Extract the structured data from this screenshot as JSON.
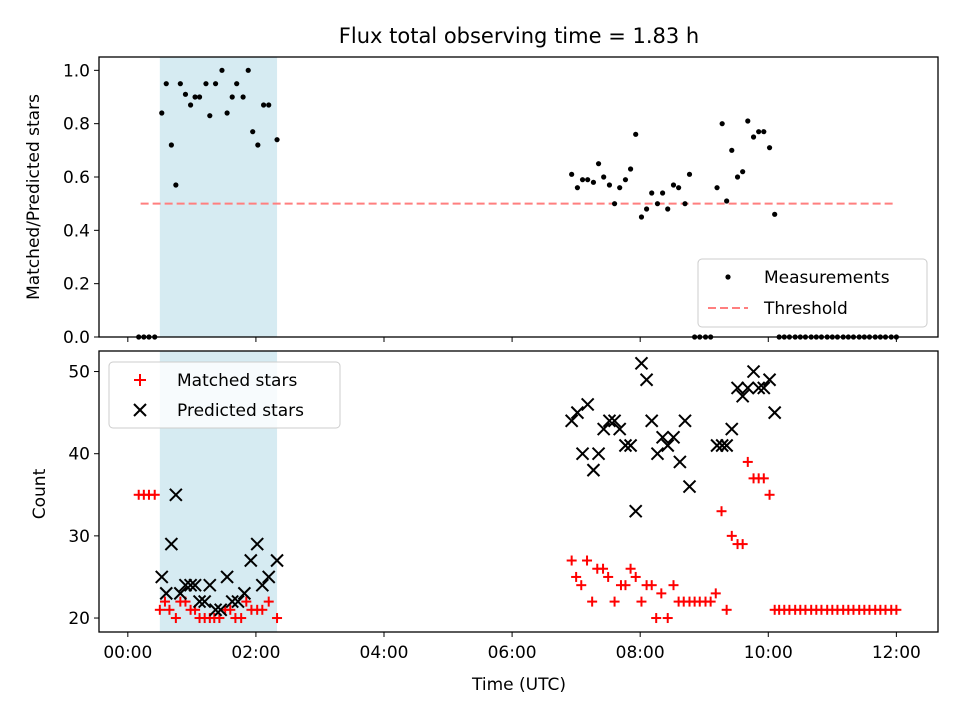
{
  "chart_data": [
    {
      "type": "scatter",
      "title": "Flux total observing time = 1.83 h",
      "xlabel": "",
      "ylabel": "Matched/Predicted stars",
      "ylim": [
        0.0,
        1.05
      ],
      "xlim": [
        -0.45,
        12.65
      ],
      "x_unit": "hours (UTC)",
      "yticks": [
        "0.0",
        "0.2",
        "0.4",
        "0.6",
        "0.8",
        "1.0"
      ],
      "xticks_shown": false,
      "highlight_span": {
        "x_start": 0.5,
        "x_end": 2.33,
        "color": "#add8e6"
      },
      "threshold": {
        "name": "Threshold",
        "y": 0.5,
        "x_start": 0.2,
        "x_end": 12.0,
        "color": "#ff7f7f",
        "style": "dashed"
      },
      "series": [
        {
          "name": "Measurements",
          "marker": "dot",
          "color": "#000000",
          "points": [
            [
              0.17,
              0.0
            ],
            [
              0.25,
              0.0
            ],
            [
              0.33,
              0.0
            ],
            [
              0.42,
              0.0
            ],
            [
              0.53,
              0.84
            ],
            [
              0.6,
              0.95
            ],
            [
              0.68,
              0.72
            ],
            [
              0.75,
              0.57
            ],
            [
              0.82,
              0.95
            ],
            [
              0.9,
              0.91
            ],
            [
              0.98,
              0.87
            ],
            [
              1.05,
              0.9
            ],
            [
              1.12,
              0.9
            ],
            [
              1.22,
              0.95
            ],
            [
              1.28,
              0.83
            ],
            [
              1.37,
              0.95
            ],
            [
              1.47,
              1.0
            ],
            [
              1.55,
              0.84
            ],
            [
              1.63,
              0.9
            ],
            [
              1.7,
              0.95
            ],
            [
              1.8,
              0.9
            ],
            [
              1.88,
              1.0
            ],
            [
              1.95,
              0.77
            ],
            [
              2.03,
              0.72
            ],
            [
              2.12,
              0.87
            ],
            [
              2.2,
              0.87
            ],
            [
              2.33,
              0.74
            ],
            [
              6.93,
              0.61
            ],
            [
              7.02,
              0.56
            ],
            [
              7.1,
              0.59
            ],
            [
              7.18,
              0.59
            ],
            [
              7.27,
              0.58
            ],
            [
              7.35,
              0.65
            ],
            [
              7.43,
              0.6
            ],
            [
              7.52,
              0.57
            ],
            [
              7.6,
              0.5
            ],
            [
              7.68,
              0.56
            ],
            [
              7.77,
              0.59
            ],
            [
              7.85,
              0.63
            ],
            [
              7.93,
              0.76
            ],
            [
              8.02,
              0.45
            ],
            [
              8.1,
              0.48
            ],
            [
              8.18,
              0.54
            ],
            [
              8.27,
              0.5
            ],
            [
              8.35,
              0.54
            ],
            [
              8.43,
              0.48
            ],
            [
              8.52,
              0.57
            ],
            [
              8.6,
              0.56
            ],
            [
              8.7,
              0.5
            ],
            [
              8.77,
              0.61
            ],
            [
              8.85,
              0.0
            ],
            [
              8.93,
              0.0
            ],
            [
              9.02,
              0.0
            ],
            [
              9.1,
              0.0
            ],
            [
              9.2,
              0.56
            ],
            [
              9.28,
              0.8
            ],
            [
              9.35,
              0.51
            ],
            [
              9.43,
              0.7
            ],
            [
              9.52,
              0.6
            ],
            [
              9.6,
              0.62
            ],
            [
              9.68,
              0.81
            ],
            [
              9.77,
              0.75
            ],
            [
              9.85,
              0.77
            ],
            [
              9.93,
              0.77
            ],
            [
              10.02,
              0.71
            ],
            [
              10.1,
              0.46
            ],
            [
              10.17,
              0.0
            ],
            [
              10.25,
              0.0
            ],
            [
              10.33,
              0.0
            ],
            [
              10.42,
              0.0
            ],
            [
              10.5,
              0.0
            ],
            [
              10.58,
              0.0
            ],
            [
              10.67,
              0.0
            ],
            [
              10.75,
              0.0
            ],
            [
              10.83,
              0.0
            ],
            [
              10.92,
              0.0
            ],
            [
              11.0,
              0.0
            ],
            [
              11.08,
              0.0
            ],
            [
              11.17,
              0.0
            ],
            [
              11.25,
              0.0
            ],
            [
              11.33,
              0.0
            ],
            [
              11.42,
              0.0
            ],
            [
              11.5,
              0.0
            ],
            [
              11.58,
              0.0
            ],
            [
              11.67,
              0.0
            ],
            [
              11.75,
              0.0
            ],
            [
              11.83,
              0.0
            ],
            [
              11.92,
              0.0
            ],
            [
              12.0,
              0.0
            ]
          ]
        }
      ],
      "legend": {
        "placement": "lower right",
        "entries": [
          "Measurements",
          "Threshold"
        ]
      }
    },
    {
      "type": "scatter",
      "title": "",
      "xlabel": "Time (UTC)",
      "ylabel": "Count",
      "ylim": [
        18.3,
        52.5
      ],
      "xlim": [
        -0.45,
        12.65
      ],
      "x_unit": "hours (UTC)",
      "xticks": [
        "00:00",
        "02:00",
        "04:00",
        "06:00",
        "08:00",
        "10:00",
        "12:00"
      ],
      "yticks": [
        "20",
        "30",
        "40",
        "50"
      ],
      "highlight_span": {
        "x_start": 0.5,
        "x_end": 2.33,
        "color": "#add8e6"
      },
      "series": [
        {
          "name": "Matched stars",
          "marker": "plus",
          "color": "#ff0000",
          "points": [
            [
              0.17,
              35
            ],
            [
              0.25,
              35
            ],
            [
              0.33,
              35
            ],
            [
              0.42,
              35
            ],
            [
              0.5,
              21
            ],
            [
              0.58,
              22
            ],
            [
              0.65,
              21
            ],
            [
              0.75,
              20
            ],
            [
              0.82,
              22
            ],
            [
              0.9,
              22
            ],
            [
              0.98,
              21
            ],
            [
              1.05,
              21
            ],
            [
              1.12,
              20
            ],
            [
              1.2,
              20
            ],
            [
              1.28,
              20
            ],
            [
              1.35,
              20
            ],
            [
              1.43,
              20
            ],
            [
              1.52,
              21
            ],
            [
              1.6,
              21
            ],
            [
              1.68,
              20
            ],
            [
              1.77,
              20
            ],
            [
              1.85,
              22
            ],
            [
              1.93,
              21
            ],
            [
              2.02,
              21
            ],
            [
              2.1,
              21
            ],
            [
              2.2,
              22
            ],
            [
              2.33,
              20
            ],
            [
              6.93,
              27
            ],
            [
              7.0,
              25
            ],
            [
              7.08,
              24
            ],
            [
              7.17,
              27
            ],
            [
              7.25,
              22
            ],
            [
              7.33,
              26
            ],
            [
              7.42,
              26
            ],
            [
              7.5,
              25
            ],
            [
              7.6,
              22
            ],
            [
              7.7,
              24
            ],
            [
              7.77,
              24
            ],
            [
              7.85,
              26
            ],
            [
              7.93,
              25
            ],
            [
              8.02,
              22
            ],
            [
              8.1,
              24
            ],
            [
              8.18,
              24
            ],
            [
              8.25,
              20
            ],
            [
              8.33,
              23
            ],
            [
              8.43,
              20
            ],
            [
              8.52,
              24
            ],
            [
              8.6,
              22
            ],
            [
              8.68,
              22
            ],
            [
              8.77,
              22
            ],
            [
              8.85,
              22
            ],
            [
              8.93,
              22
            ],
            [
              9.02,
              22
            ],
            [
              9.1,
              22
            ],
            [
              9.18,
              23
            ],
            [
              9.27,
              33
            ],
            [
              9.35,
              21
            ],
            [
              9.43,
              30
            ],
            [
              9.52,
              29
            ],
            [
              9.6,
              29
            ],
            [
              9.68,
              39
            ],
            [
              9.77,
              37
            ],
            [
              9.85,
              37
            ],
            [
              9.93,
              37
            ],
            [
              10.02,
              35
            ],
            [
              10.1,
              21
            ],
            [
              10.17,
              21
            ],
            [
              10.25,
              21
            ],
            [
              10.33,
              21
            ],
            [
              10.42,
              21
            ],
            [
              10.5,
              21
            ],
            [
              10.58,
              21
            ],
            [
              10.67,
              21
            ],
            [
              10.75,
              21
            ],
            [
              10.83,
              21
            ],
            [
              10.92,
              21
            ],
            [
              11.0,
              21
            ],
            [
              11.08,
              21
            ],
            [
              11.17,
              21
            ],
            [
              11.25,
              21
            ],
            [
              11.33,
              21
            ],
            [
              11.42,
              21
            ],
            [
              11.5,
              21
            ],
            [
              11.58,
              21
            ],
            [
              11.67,
              21
            ],
            [
              11.75,
              21
            ],
            [
              11.83,
              21
            ],
            [
              11.92,
              21
            ],
            [
              12.0,
              21
            ]
          ]
        },
        {
          "name": "Predicted stars",
          "marker": "x",
          "color": "#000000",
          "points": [
            [
              0.53,
              25
            ],
            [
              0.6,
              23
            ],
            [
              0.68,
              29
            ],
            [
              0.75,
              35
            ],
            [
              0.82,
              23
            ],
            [
              0.9,
              24
            ],
            [
              0.98,
              24
            ],
            [
              1.05,
              24
            ],
            [
              1.12,
              22
            ],
            [
              1.2,
              22
            ],
            [
              1.28,
              24
            ],
            [
              1.37,
              21
            ],
            [
              1.45,
              21
            ],
            [
              1.55,
              25
            ],
            [
              1.63,
              22
            ],
            [
              1.72,
              22
            ],
            [
              1.82,
              23
            ],
            [
              1.92,
              27
            ],
            [
              2.02,
              29
            ],
            [
              2.1,
              24
            ],
            [
              2.2,
              25
            ],
            [
              2.33,
              27
            ],
            [
              6.93,
              44
            ],
            [
              7.02,
              45
            ],
            [
              7.1,
              40
            ],
            [
              7.18,
              46
            ],
            [
              7.27,
              38
            ],
            [
              7.35,
              40
            ],
            [
              7.43,
              43
            ],
            [
              7.52,
              44
            ],
            [
              7.6,
              44
            ],
            [
              7.68,
              43
            ],
            [
              7.77,
              41
            ],
            [
              7.85,
              41
            ],
            [
              7.93,
              33
            ],
            [
              8.02,
              51
            ],
            [
              8.1,
              49
            ],
            [
              8.18,
              44
            ],
            [
              8.27,
              40
            ],
            [
              8.35,
              42
            ],
            [
              8.43,
              41
            ],
            [
              8.52,
              42
            ],
            [
              8.62,
              39
            ],
            [
              8.7,
              44
            ],
            [
              8.77,
              36
            ],
            [
              9.2,
              41
            ],
            [
              9.28,
              41
            ],
            [
              9.35,
              41
            ],
            [
              9.43,
              43
            ],
            [
              9.52,
              48
            ],
            [
              9.6,
              47
            ],
            [
              9.68,
              48
            ],
            [
              9.77,
              50
            ],
            [
              9.85,
              48
            ],
            [
              9.93,
              48
            ],
            [
              10.02,
              49
            ],
            [
              10.1,
              45
            ]
          ]
        }
      ],
      "legend": {
        "placement": "upper left",
        "entries": [
          "Matched stars",
          "Predicted stars"
        ]
      }
    }
  ]
}
